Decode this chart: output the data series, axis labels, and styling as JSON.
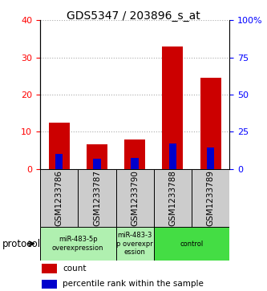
{
  "title": "GDS5347 / 203896_s_at",
  "samples": [
    "GSM1233786",
    "GSM1233787",
    "GSM1233790",
    "GSM1233788",
    "GSM1233789"
  ],
  "count_values": [
    12.5,
    6.5,
    8.0,
    33.0,
    24.5
  ],
  "percentile_values": [
    10.0,
    7.0,
    7.5,
    17.0,
    14.5
  ],
  "left_ylim": [
    0,
    40
  ],
  "right_ylim": [
    0,
    100
  ],
  "left_yticks": [
    0,
    10,
    20,
    30,
    40
  ],
  "right_yticks": [
    0,
    25,
    50,
    75,
    100
  ],
  "right_yticklabels": [
    "0",
    "25",
    "50",
    "75",
    "100%"
  ],
  "bar_color": "#cc0000",
  "percentile_color": "#0000cc",
  "bar_width": 0.55,
  "percentile_bar_width": 0.2,
  "grid_color": "#aaaaaa",
  "bg_color": "#ffffff",
  "label_area_bg": "#cccccc",
  "group_spans": [
    [
      0,
      1,
      "miR-483-5p\noverexpression",
      "#b0f0b0"
    ],
    [
      2,
      2,
      "miR-483-3\np overexpr\nession",
      "#b0f0b0"
    ],
    [
      3,
      4,
      "control",
      "#44dd44"
    ]
  ],
  "protocol_label": "protocol",
  "legend_count_label": "count",
  "legend_percentile_label": "percentile rank within the sample"
}
